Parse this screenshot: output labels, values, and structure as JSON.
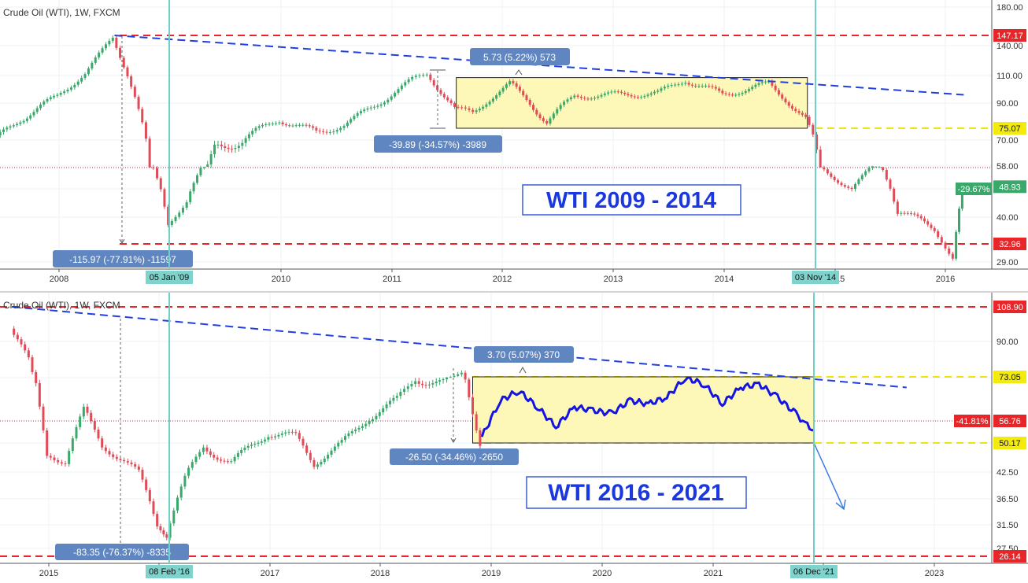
{
  "chart_data": [
    {
      "type": "candlestick",
      "header": "Crude Oil (WTI), 1W, FXCM",
      "title": "WTI 2009 - 2014",
      "x_ticks": [
        "2008",
        "2010",
        "2011",
        "2012",
        "2013",
        "2014",
        "2015",
        "2016"
      ],
      "y_ticks": [
        "180.00",
        "140.00",
        "110.00",
        "90.00",
        "70.00",
        "58.00",
        "48.00",
        "40.00",
        "29.00"
      ],
      "price_labels": [
        {
          "text": "147.17",
          "value": 147.17,
          "color": "#e8262a"
        },
        {
          "text": "75.07",
          "value": 75.07,
          "color": "#f3ea0e"
        },
        {
          "text": "48.93",
          "value": 48.93,
          "color": "#3aa86b"
        },
        {
          "text": "32.96",
          "value": 32.96,
          "color": "#e8262a"
        }
      ],
      "change_badge": "-29.67%",
      "date_markers": [
        "05 Jan '09",
        "03 Nov '14"
      ],
      "annotations": [
        "-115.97 (-77.91%) -11597",
        "-39.89 (-34.57%) -3989",
        "5.73 (5.22%) 573"
      ],
      "horizontal_levels": {
        "red": [
          147.17,
          32.96
        ],
        "yellow": [
          75.07
        ],
        "dotted": [
          62.5
        ]
      },
      "trendline": {
        "from": [
          "2008-07",
          147.17
        ],
        "to": [
          "2016-03",
          96
        ],
        "style": "dashed"
      },
      "range_box": {
        "x": [
          "2011-08",
          "2014-10"
        ],
        "y": [
          75.07,
          108.5
        ]
      },
      "series": [
        {
          "name": "",
          "dates": [
            "2007-05",
            "2007-09",
            "2008-01",
            "2008-04",
            "2008-07",
            "2008-09",
            "2008-11",
            "2009-01",
            "2009-03",
            "2009-06",
            "2009-09",
            "2010-01",
            "2010-05",
            "2010-08",
            "2010-12",
            "2011-03",
            "2011-05",
            "2011-08",
            "2011-10",
            "2012-02",
            "2012-06",
            "2012-09",
            "2013-01",
            "2013-06",
            "2013-09",
            "2014-01",
            "2014-06",
            "2014-10",
            "2014-12",
            "2015-03",
            "2015-06",
            "2015-08",
            "2015-12",
            "2016-02",
            "2016-03"
          ],
          "close": [
            65,
            80,
            95,
            112,
            145,
            105,
            60,
            38,
            45,
            68,
            70,
            80,
            73,
            77,
            91,
            105,
            112,
            86,
            84,
            104,
            79,
            95,
            96,
            97,
            107,
            96,
            104,
            80,
            56,
            48,
            61,
            42,
            37,
            30,
            48
          ]
        }
      ]
    },
    {
      "type": "candlestick",
      "header": "Crude Oil (WTI), 1W, FXCM",
      "title": "WTI 2016 - 2021",
      "x_ticks": [
        "2015",
        "2016",
        "2017",
        "2018",
        "2019",
        "2020",
        "2021",
        "2022",
        "2023"
      ],
      "y_ticks": [
        "90.00",
        "70.00",
        "50.17",
        "42.50",
        "36.50",
        "31.50",
        "27.50"
      ],
      "price_labels": [
        {
          "text": "108.90",
          "value": 108.9,
          "color": "#e8262a"
        },
        {
          "text": "73.05",
          "value": 73.05,
          "color": "#f3ea0e"
        },
        {
          "text": "56.76",
          "value": 56.76,
          "color": "#e8262a"
        },
        {
          "text": "50.17",
          "value": 50.17,
          "color": "#f3ea0e"
        },
        {
          "text": "26.14",
          "value": 26.14,
          "color": "#e8262a"
        }
      ],
      "change_badge": "-41.81%",
      "date_markers": [
        "08 Feb '16",
        "06 Dec '21"
      ],
      "annotations": [
        "-83.35 (-76.37%) -8335",
        "-26.50 (-34.46%) -2650",
        "3.70 (5.07%) 370"
      ],
      "horizontal_levels": {
        "red": [
          108.9,
          26.14
        ],
        "yellow": [
          73.05,
          50.17
        ],
        "dotted": [
          56.76
        ]
      },
      "trendline": {
        "from": [
          "2014-09",
          108.9
        ],
        "to": [
          "2022-10",
          67
        ],
        "style": "dashed"
      },
      "range_box": {
        "x": [
          "2018-11",
          "2021-12"
        ],
        "y": [
          50.17,
          73.05
        ]
      },
      "projection_arrow": {
        "from": [
          "2021-12",
          50.17
        ],
        "to": [
          "2022-05",
          35
        ]
      },
      "series": [
        {
          "name": "",
          "dates": [
            "2014-09",
            "2014-11",
            "2015-01",
            "2015-03",
            "2015-05",
            "2015-07",
            "2015-09",
            "2015-11",
            "2016-01",
            "2016-02",
            "2016-04",
            "2016-06",
            "2016-09",
            "2017-01",
            "2017-04",
            "2017-06",
            "2017-09",
            "2017-12",
            "2018-03",
            "2018-05",
            "2018-08",
            "2018-10",
            "2018-12"
          ],
          "close": [
            97,
            80,
            48,
            45,
            60,
            50,
            46,
            42,
            32,
            30,
            41,
            49,
            45,
            53,
            52,
            45,
            50,
            58,
            63,
            70,
            68,
            75,
            51
          ]
        },
        {
          "name": "",
          "dates": [
            "2018-12",
            "2019-02",
            "2019-04",
            "2019-06",
            "2019-08",
            "2019-10",
            "2019-12",
            "2020-02",
            "2020-04",
            "2020-06",
            "2020-08",
            "2020-10",
            "2020-12",
            "2021-02",
            "2021-04",
            "2021-06",
            "2021-08",
            "2021-10",
            "2021-11",
            "2021-12"
          ],
          "close": [
            52,
            63,
            66,
            61,
            55,
            61,
            60,
            59,
            63,
            62,
            64,
            70,
            68,
            62,
            67,
            68,
            64,
            59,
            56,
            54
          ]
        }
      ]
    }
  ]
}
